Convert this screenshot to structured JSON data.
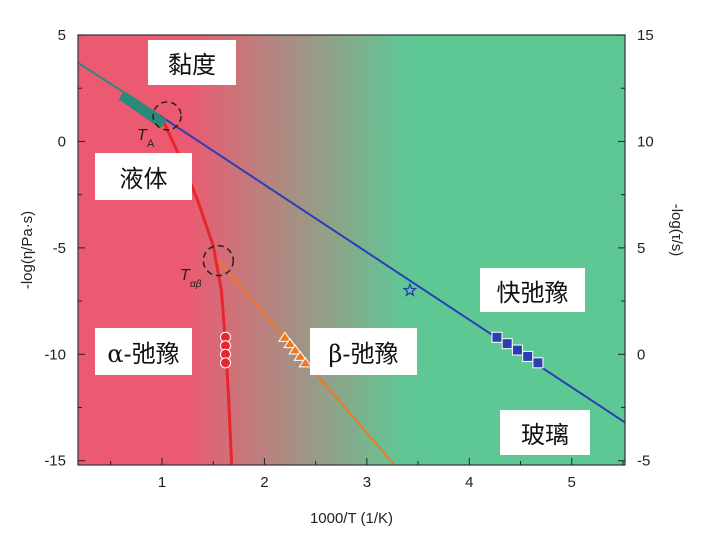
{
  "chart_data": {
    "type": "line",
    "xlabel": "1000/T (1/K)",
    "ylabel_left": "-log(η/Pa·s)",
    "ylabel_right": "-log(τ/s)",
    "xlim": [
      0.18,
      5.52
    ],
    "ylim_left": [
      -15.2,
      5
    ],
    "ylim_right": [
      -5.2,
      15
    ],
    "x_ticks": [
      "1",
      "2",
      "3",
      "4",
      "5"
    ],
    "y_left_ticks": [
      "5",
      "0",
      "-5",
      "-10",
      "-15"
    ],
    "y_right_ticks": [
      "15",
      "10",
      "5",
      "0",
      "-5"
    ],
    "background": {
      "liquid_color": "#ec5a72",
      "glass_color": "#5ec895"
    },
    "series": [
      {
        "id": "viscosity-fit",
        "color": "#2a8a7a",
        "points": [
          [
            0.18,
            3.7
          ],
          [
            0.95,
            1.3
          ]
        ]
      },
      {
        "id": "fast-relaxation-line",
        "color": "#2a3fb0",
        "points": [
          [
            0.95,
            1.3
          ],
          [
            5.52,
            -13.2
          ]
        ]
      },
      {
        "id": "alpha-relaxation-curve",
        "color": "#e8262e",
        "points": [
          [
            1.0,
            1.1
          ],
          [
            1.2,
            -1.0
          ],
          [
            1.35,
            -2.8
          ],
          [
            1.5,
            -4.9
          ],
          [
            1.58,
            -7.0
          ],
          [
            1.62,
            -9.5
          ],
          [
            1.65,
            -12
          ],
          [
            1.68,
            -15.2
          ]
        ]
      },
      {
        "id": "beta-relaxation-line",
        "color": "#f07820",
        "points": [
          [
            1.55,
            -5.6
          ],
          [
            3.27,
            -15.2
          ]
        ]
      }
    ],
    "markers": [
      {
        "id": "viscosity-data",
        "color": "#2a8a7a",
        "shape": "rect",
        "points": [
          [
            0.66,
            2.0
          ],
          [
            0.72,
            1.8
          ],
          [
            0.78,
            1.6
          ],
          [
            0.84,
            1.4
          ],
          [
            0.9,
            1.2
          ],
          [
            0.96,
            1.0
          ]
        ]
      },
      {
        "id": "alpha-data",
        "color": "#e8262e",
        "shape": "circle",
        "points": [
          [
            1.62,
            -9.2
          ],
          [
            1.62,
            -9.6
          ],
          [
            1.62,
            -10.0
          ],
          [
            1.62,
            -10.4
          ]
        ]
      },
      {
        "id": "beta-data",
        "color": "#f07820",
        "shape": "triangle",
        "points": [
          [
            2.2,
            -9.2
          ],
          [
            2.25,
            -9.5
          ],
          [
            2.3,
            -9.8
          ],
          [
            2.35,
            -10.1
          ],
          [
            2.4,
            -10.4
          ]
        ]
      },
      {
        "id": "fast-data",
        "color": "#2a3fb0",
        "shape": "square",
        "points": [
          [
            4.27,
            -9.2
          ],
          [
            4.37,
            -9.5
          ],
          [
            4.47,
            -9.8
          ],
          [
            4.57,
            -10.1
          ],
          [
            4.67,
            -10.4
          ]
        ]
      },
      {
        "id": "fast-star",
        "color": "#2a3fb0",
        "shape": "star",
        "points": [
          [
            3.42,
            -7.0
          ]
        ]
      }
    ],
    "annotations": {
      "TA": "T",
      "TA_sub": "A",
      "Tab": "T",
      "Tab_sub": "αβ"
    },
    "labels": {
      "viscosity": "黏度",
      "liquid": "液体",
      "alpha": "α-弛豫",
      "beta": "β-弛豫",
      "fast": "快弛豫",
      "glass": "玻璃"
    }
  }
}
